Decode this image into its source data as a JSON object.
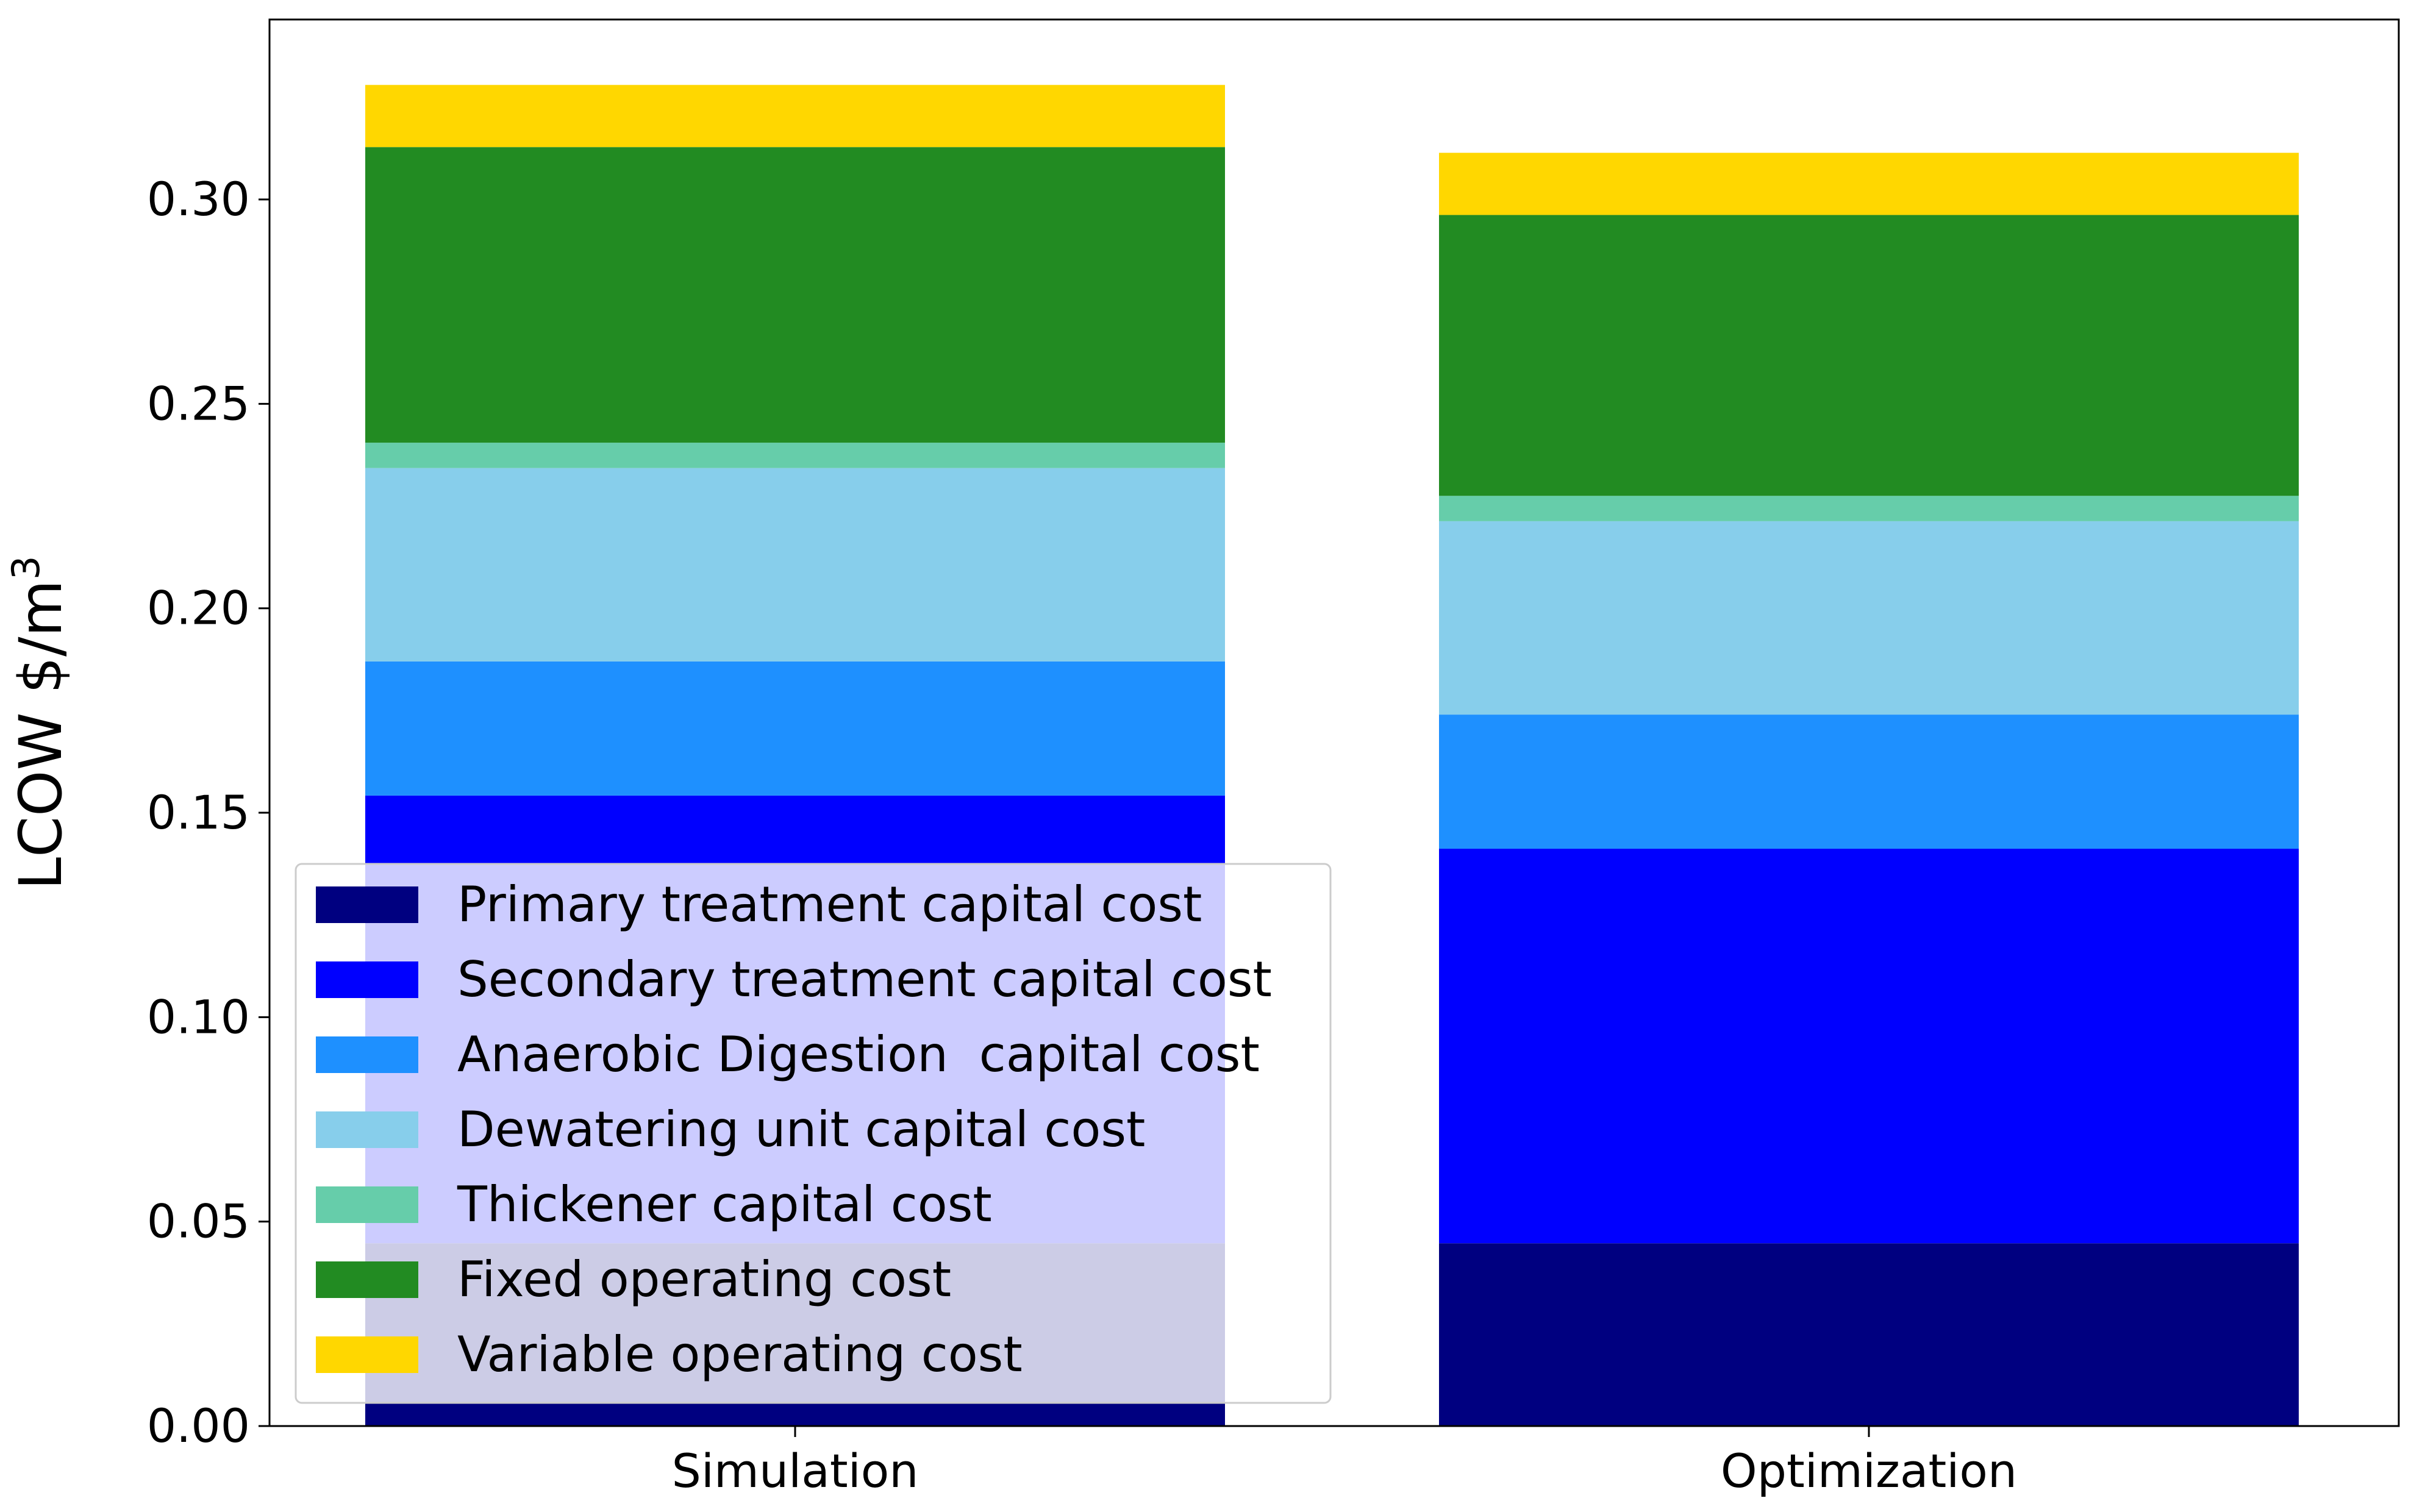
{
  "chart_data": {
    "type": "bar",
    "stacked": true,
    "categories": [
      "Simulation",
      "Optimization"
    ],
    "ylabel": "LCOW $/m",
    "ylabel_superscript": "3",
    "ylim": [
      0,
      0.344
    ],
    "yticks": [
      0.0,
      0.05,
      0.1,
      0.15,
      0.2,
      0.25,
      0.3
    ],
    "ytick_labels": [
      "0.00",
      "0.05",
      "0.10",
      "0.15",
      "0.20",
      "0.25",
      "0.30"
    ],
    "grid": false,
    "legend_position": "lower-left",
    "series": [
      {
        "name": "Primary treatment capital cost",
        "color": "#000080",
        "values": [
          0.0447,
          0.0447
        ]
      },
      {
        "name": "Secondary treatment capital cost",
        "color": "#0000FF",
        "values": [
          0.1095,
          0.0965
        ]
      },
      {
        "name": "Anaerobic Digestion  capital cost",
        "color": "#1E90FF",
        "values": [
          0.0328,
          0.0328
        ]
      },
      {
        "name": "Dewatering unit capital cost",
        "color": "#87CEEB",
        "values": [
          0.0473,
          0.0473
        ]
      },
      {
        "name": "Thickener capital cost",
        "color": "#66CDAA",
        "values": [
          0.0062,
          0.0062
        ]
      },
      {
        "name": "Fixed operating cost",
        "color": "#228B22",
        "values": [
          0.0723,
          0.0687
        ]
      },
      {
        "name": "Variable operating cost",
        "color": "#FFD700",
        "values": [
          0.0152,
          0.0152
        ]
      }
    ]
  }
}
